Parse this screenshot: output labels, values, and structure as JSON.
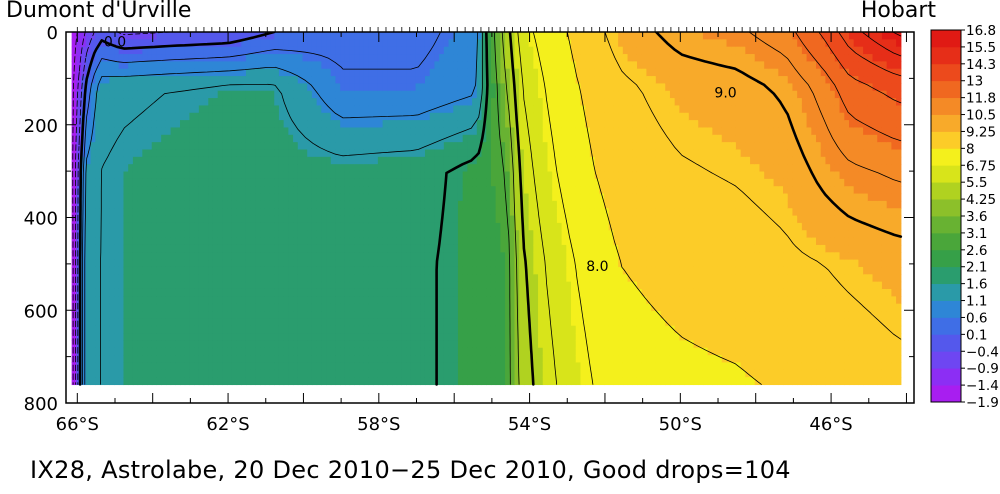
{
  "labels": {
    "left_location": "Dumont d'Urville",
    "right_location": "Hobart",
    "caption": "IX28, Astrolabe, 20 Dec 2010−25 Dec 2010, Good drops=104"
  },
  "chart_data": {
    "type": "heatmap",
    "title": "",
    "xlabel": "",
    "ylabel": "",
    "x_axis": {
      "quantity": "latitude (°S)",
      "range": [
        66.3,
        43.8
      ],
      "ticks": [
        66,
        62,
        58,
        54,
        50,
        46
      ],
      "tick_labels": [
        "66°S",
        "62°S",
        "58°S",
        "54°S",
        "50°S",
        "46°S"
      ]
    },
    "y_axis": {
      "quantity": "depth",
      "inverted": true,
      "range": [
        0,
        800
      ],
      "ticks": [
        0,
        200,
        400,
        600,
        800
      ],
      "tick_labels": [
        "0",
        "200",
        "400",
        "600",
        "800"
      ],
      "data_extent": [
        0,
        760
      ]
    },
    "colorbar": {
      "position": "right",
      "levels": [
        -1.9,
        -1.4,
        -0.9,
        -0.4,
        0.1,
        0.6,
        1.1,
        1.6,
        2.1,
        2.6,
        3.1,
        3.6,
        4.25,
        5.5,
        6.75,
        8,
        9.25,
        10.5,
        11.8,
        13,
        14.3,
        15.5,
        16.8
      ],
      "level_labels": [
        "−1.9",
        "−1.4",
        "−0.9",
        "−0.4",
        "0.1",
        "0.6",
        "1.1",
        "1.6",
        "2.1",
        "2.6",
        "3.1",
        "3.6",
        "4.25",
        "5.5",
        "6.75",
        "8",
        "9.25",
        "10.5",
        "11.8",
        "13",
        "14.3",
        "15.5",
        "16.8"
      ],
      "colors": [
        "#a81ef0",
        "#8c2ef4",
        "#6e46f2",
        "#5458ec",
        "#3f6ee6",
        "#2e86d6",
        "#2a9aa8",
        "#2a9d6e",
        "#36a048",
        "#4aa63a",
        "#68b232",
        "#8cc02a",
        "#b0d220",
        "#d8e41a",
        "#f4f01c",
        "#fccc28",
        "#f8aa2a",
        "#f48a26",
        "#f06820",
        "#ec4a1c",
        "#e62e18",
        "#e01a14"
      ]
    },
    "field_samples": {
      "latitudes": [
        66.1,
        65.8,
        65.4,
        64.8,
        63.5,
        62.0,
        60.8,
        59.0,
        57.0,
        55.4,
        54.6,
        54.2,
        53.6,
        52.8,
        51.6,
        50.0,
        48.5,
        47.2,
        46.2,
        45.5,
        44.2
      ],
      "depths": [
        0,
        120,
        300,
        500,
        760
      ],
      "temperature": [
        [
          -1.8,
          -1.7,
          -1.7,
          -1.8,
          -1.8
        ],
        [
          -1.0,
          0.0,
          1.1,
          1.4,
          1.4
        ],
        [
          -0.2,
          1.3,
          1.5,
          1.5,
          1.5
        ],
        [
          -0.6,
          1.4,
          1.6,
          1.6,
          1.6
        ],
        [
          -0.5,
          1.5,
          1.7,
          1.7,
          1.7
        ],
        [
          -0.4,
          1.6,
          1.8,
          1.8,
          1.8
        ],
        [
          0.0,
          1.6,
          1.8,
          1.8,
          1.8
        ],
        [
          0.3,
          0.6,
          1.7,
          1.8,
          1.8
        ],
        [
          0.3,
          0.6,
          1.8,
          1.9,
          1.9
        ],
        [
          0.8,
          0.9,
          2.2,
          2.2,
          2.2
        ],
        [
          4.6,
          4.0,
          3.0,
          2.6,
          2.6
        ],
        [
          6.6,
          6.0,
          5.4,
          4.8,
          4.4
        ],
        [
          7.4,
          7.0,
          6.6,
          6.0,
          5.6
        ],
        [
          8.2,
          7.9,
          7.6,
          7.0,
          6.6
        ],
        [
          9.4,
          8.8,
          8.5,
          8.0,
          7.6
        ],
        [
          10.4,
          9.4,
          8.9,
          8.3,
          7.8
        ],
        [
          10.8,
          9.6,
          9.1,
          8.5,
          7.9
        ],
        [
          11.6,
          10.2,
          9.4,
          8.8,
          8.1
        ],
        [
          13.2,
          11.4,
          10.3,
          9.0,
          8.3
        ],
        [
          14.6,
          12.6,
          10.8,
          9.2,
          8.4
        ],
        [
          16.2,
          13.4,
          11.2,
          9.5,
          8.7
        ]
      ]
    },
    "contour_labels": [
      {
        "text": "0.0",
        "lat": 65.0,
        "depth": 20
      },
      {
        "text": "9.0",
        "lat": 48.8,
        "depth": 130
      },
      {
        "text": "8.0",
        "lat": 52.2,
        "depth": 505
      }
    ]
  }
}
